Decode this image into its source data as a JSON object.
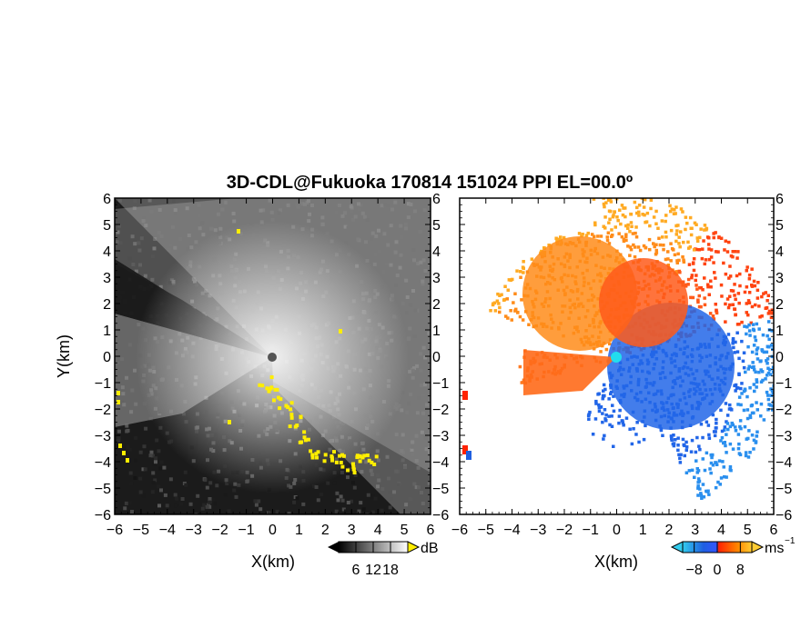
{
  "title": "3D-CDL@Fukuoka 170814 151024 PPI EL=00.0º",
  "chart_data": [
    {
      "type": "heatmap",
      "panel": "left",
      "xlabel": "X(km)",
      "ylabel": "Y(km)",
      "xlim": [
        -6,
        6
      ],
      "ylim": [
        -6,
        6
      ],
      "xticks": [
        "−6",
        "−5",
        "−4",
        "−3",
        "−2",
        "−1",
        "0",
        "1",
        "2",
        "3",
        "4",
        "5",
        "6"
      ],
      "yticks": [
        "6",
        "5",
        "4",
        "3",
        "2",
        "1",
        "0",
        "−1",
        "−2",
        "−3",
        "−4",
        "−5",
        "−6"
      ],
      "colormap": "grayscale",
      "colors": {
        "low": "#1a1a1a",
        "high": "#f0f0f0",
        "flag": "#ffee00"
      },
      "colorbar": {
        "unit": "dB",
        "tick_labels": [
          "6",
          "12",
          "18"
        ],
        "ticks": [
          6,
          12,
          18
        ]
      }
    },
    {
      "type": "heatmap",
      "panel": "right",
      "xlabel": "X(km)",
      "xlim": [
        -6,
        6
      ],
      "ylim": [
        -6,
        6
      ],
      "xticks": [
        "−6",
        "−5",
        "−4",
        "−3",
        "−2",
        "−1",
        "0",
        "1",
        "2",
        "3",
        "4",
        "5",
        "6"
      ],
      "yticks": [
        "6",
        "5",
        "4",
        "3",
        "2",
        "1",
        "0",
        "−1",
        "−2",
        "−3",
        "−4",
        "−5",
        "−6"
      ],
      "colormap": "cyan-blue-red-orange",
      "colors": {
        "neg_far": "#33ccee",
        "neg": "#1f5fe0",
        "zero": "#ff2200",
        "pos": "#ff8800",
        "pos_far": "#ffcc33"
      },
      "colorbar": {
        "unit": "ms",
        "unit_exponent": "−1",
        "tick_labels": [
          "−8",
          "0",
          "8"
        ],
        "ticks": [
          -8,
          0,
          8
        ]
      }
    }
  ]
}
